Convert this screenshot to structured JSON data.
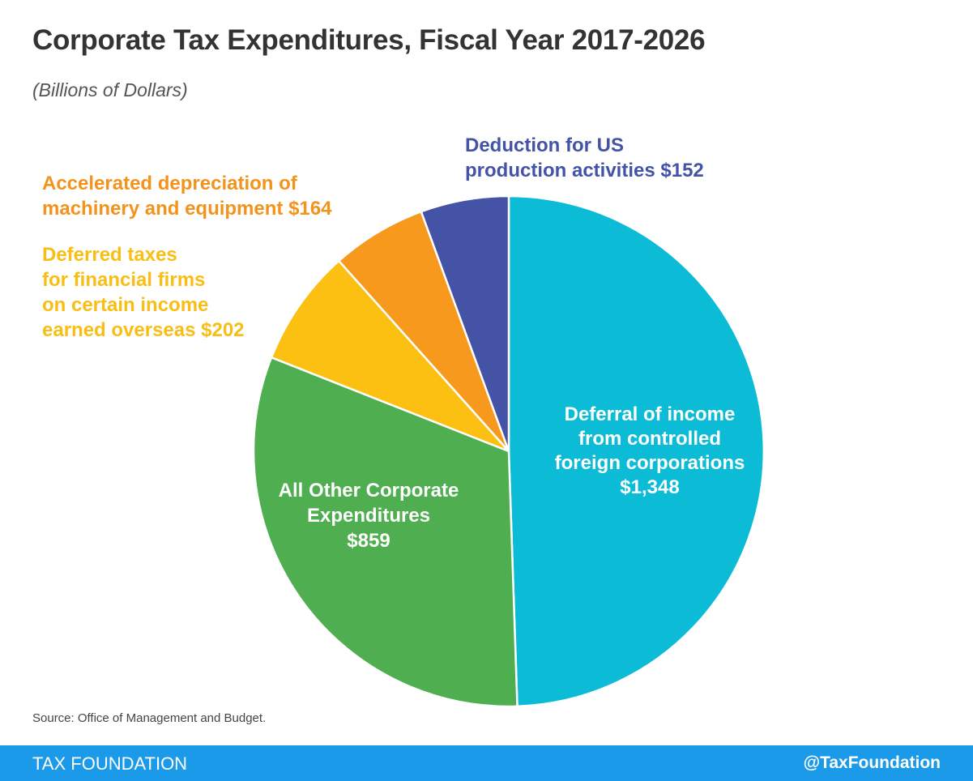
{
  "header": {
    "title": "Corporate Tax Expenditures, Fiscal Year 2017-2026",
    "subtitle": "(Billions of Dollars)"
  },
  "chart_data": {
    "type": "pie",
    "title": "Corporate Tax Expenditures, Fiscal Year 2017-2026",
    "subtitle": "(Billions of Dollars)",
    "slices": [
      {
        "label_lines": [
          "Deferral of income",
          "from controlled",
          "foreign corporations",
          "$1,348"
        ],
        "value": 1348,
        "color": "#0cbcd6",
        "label_color": "#ffffff"
      },
      {
        "label_lines": [
          "All Other Corporate",
          "Expenditures",
          "$859"
        ],
        "value": 859,
        "color": "#4fae4f",
        "label_color": "#ffffff"
      },
      {
        "label_lines": [
          "Deferred taxes",
          "for financial firms",
          "on certain income",
          "earned overseas $202"
        ],
        "value": 202,
        "color": "#fcc013",
        "label_color": "#f9be14"
      },
      {
        "label_lines": [
          "Accelerated depreciation of",
          "machinery and equipment $164"
        ],
        "value": 164,
        "color": "#f7991d",
        "label_color": "#f3931c"
      },
      {
        "label_lines": [
          "Deduction for US",
          "production activities $152"
        ],
        "value": 152,
        "color": "#4453a6",
        "label_color": "#4453a6"
      }
    ]
  },
  "source": "Source: Office of Management and Budget.",
  "footer": {
    "brand": "TAX FOUNDATION",
    "handle": "@TaxFoundation"
  }
}
